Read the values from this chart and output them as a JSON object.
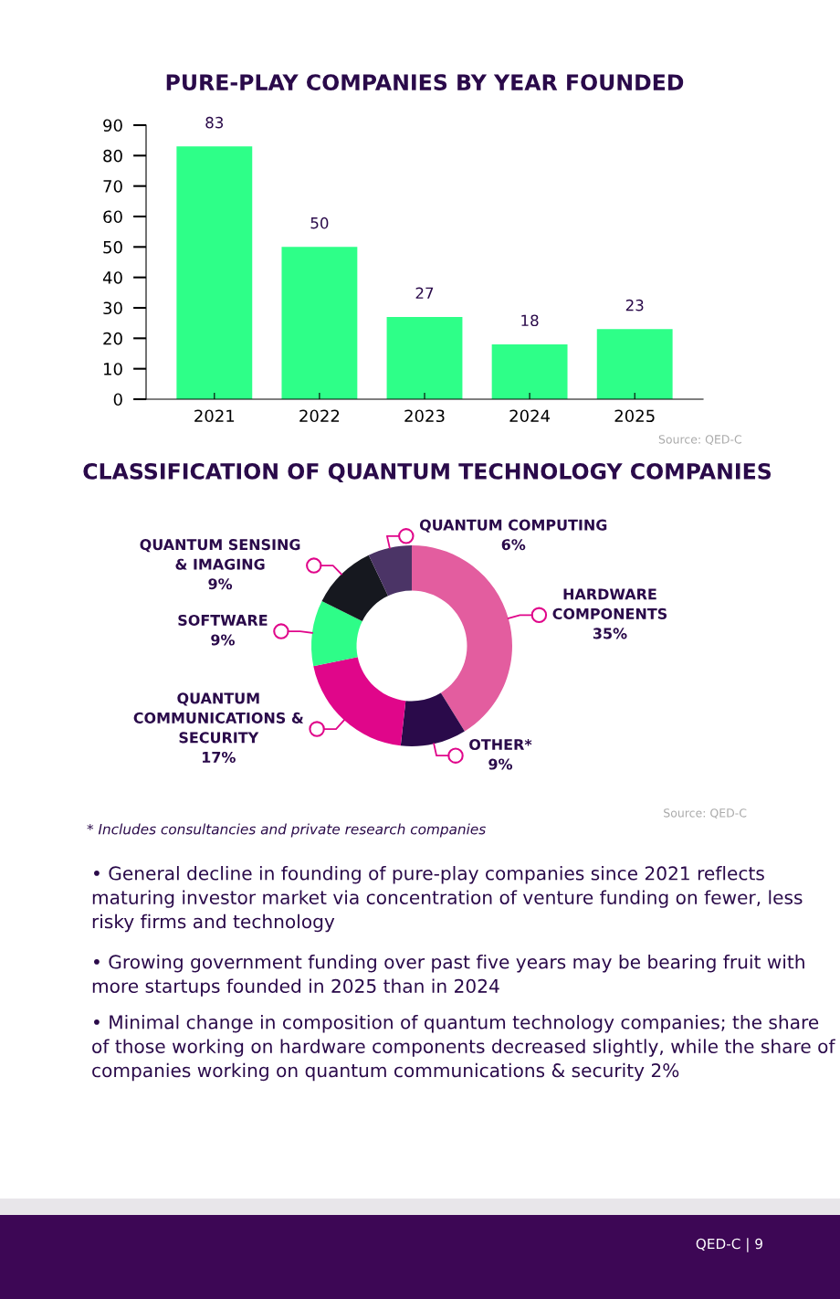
{
  "chart_data": [
    {
      "type": "bar",
      "title": "PURE-PLAY COMPANIES BY YEAR FOUNDED",
      "categories": [
        "2021",
        "2022",
        "2023",
        "2024",
        "2025"
      ],
      "values": [
        83,
        50,
        27,
        18,
        23
      ],
      "color": "#2eff88",
      "ylim": [
        0,
        90
      ],
      "yticks": [
        0,
        10,
        20,
        30,
        40,
        50,
        60,
        70,
        80,
        90
      ],
      "data_labels": true,
      "grid": false,
      "annotations": [
        "Source: QED-C"
      ]
    },
    {
      "type": "donut",
      "title": "CLASSIFICATION OF QUANTUM TECHNOLOGY COMPANIES",
      "categories": [
        "HARDWARE\nCOMPONENTS",
        "OTHER*",
        "QUANTUM\nCOMMUNICATIONS &\nSECURITY",
        "SOFTWARE",
        "QUANTUM SENSING\n& IMAGING",
        "QUANTUM COMPUTING"
      ],
      "values": [
        35,
        9,
        17,
        9,
        9,
        6
      ],
      "value_labels": [
        "35%",
        "9%",
        "17%",
        "9%",
        "9%",
        "6%"
      ],
      "colors": [
        "#e35d9f",
        "#2a0a4a",
        "#e0068a",
        "#2efd88",
        "#16181f",
        "#4b3466"
      ],
      "annotations": [
        "Source: QED-C",
        "* Includes consultancies and private research companies",
        "• General decline in founding of pure-play companies since 2021 reflects maturing investor market via concentration of venture funding on fewer, less risky firms and technology",
        "• Growing government funding over past five years may be bearing fruit with more startups founded in 2025 than in 2024",
        "• Minimal change in composition of quantum technology companies; the share of those working on hardware components decreased slightly, while the share of companies working on quantum communications & security 2%",
        "QED-C | 9"
      ]
    }
  ]
}
